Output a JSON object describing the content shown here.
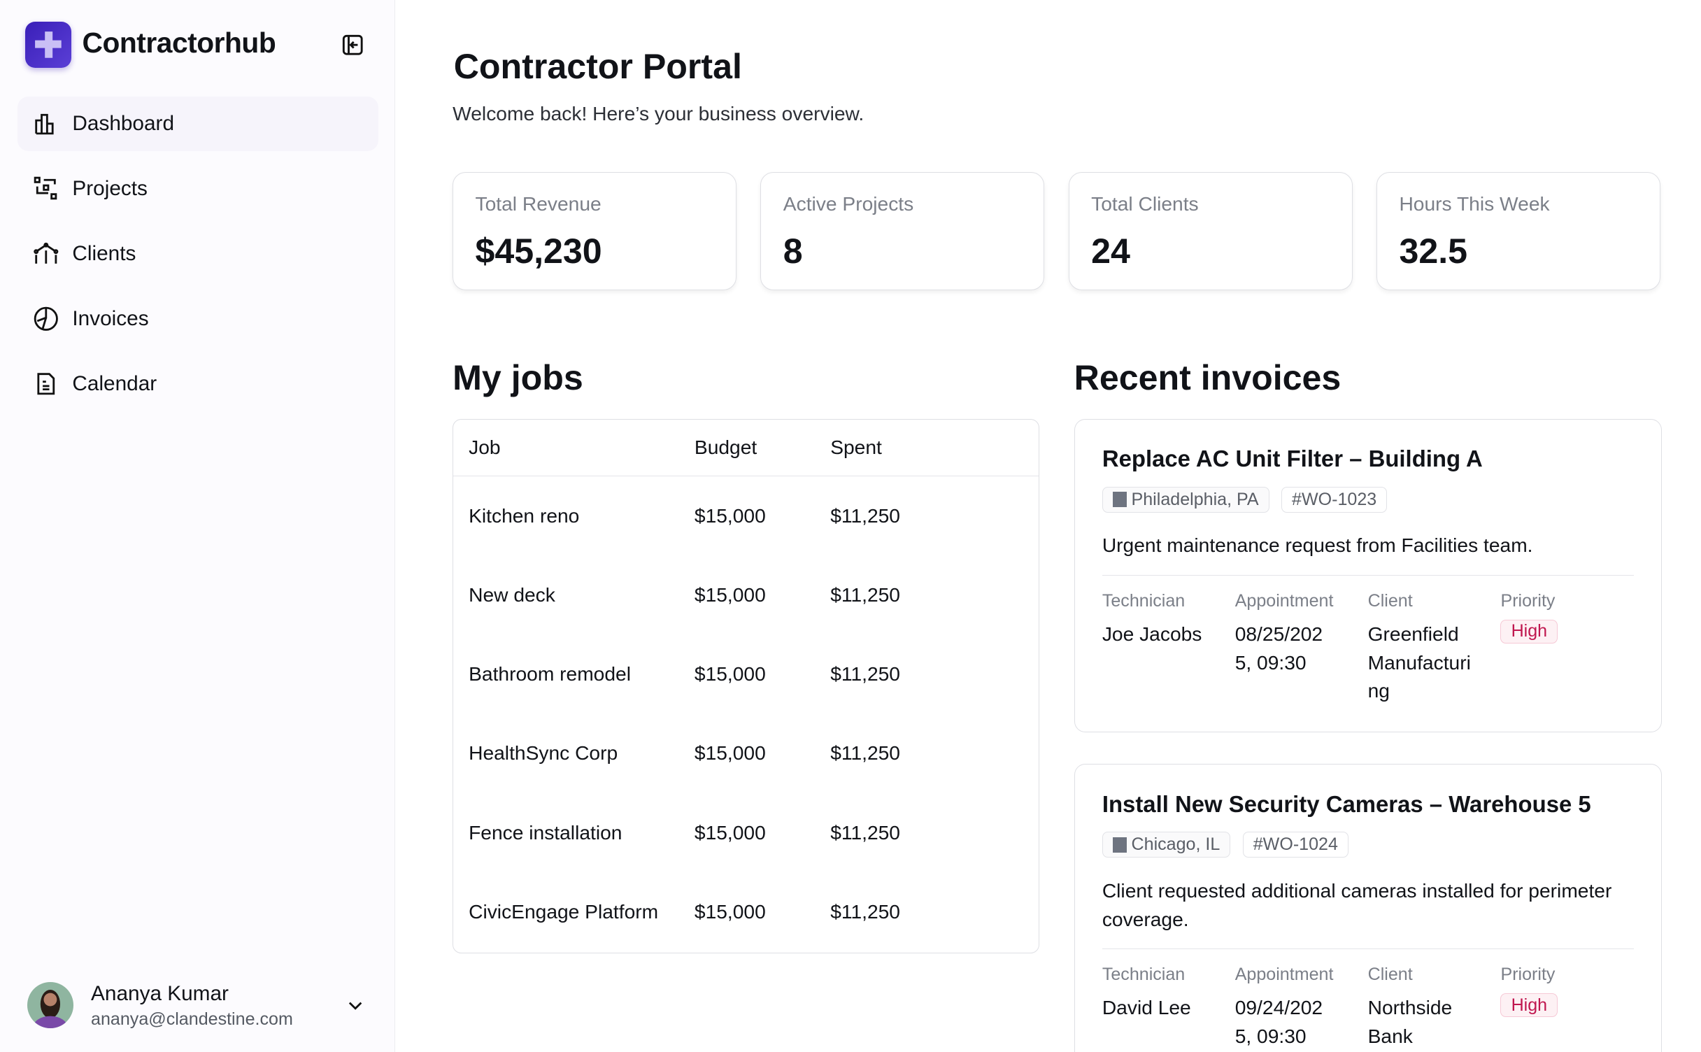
{
  "app": {
    "brand": "Contractorhub"
  },
  "sidebar": {
    "items": [
      {
        "label": "Dashboard",
        "icon": "bar-chart-icon"
      },
      {
        "label": "Projects",
        "icon": "projects-icon"
      },
      {
        "label": "Clients",
        "icon": "line-chart-icon"
      },
      {
        "label": "Invoices",
        "icon": "pie-chart-icon"
      },
      {
        "label": "Calendar",
        "icon": "document-icon"
      }
    ]
  },
  "user": {
    "name": "Ananya Kumar",
    "email": "ananya@clandestine.com"
  },
  "header": {
    "title": "Contractor Portal",
    "subtitle": "Welcome back! Here’s your business overview."
  },
  "stats": [
    {
      "label": "Total Revenue",
      "value": "$45,230"
    },
    {
      "label": "Active Projects",
      "value": "8"
    },
    {
      "label": "Total Clients",
      "value": "24"
    },
    {
      "label": "Hours This Week",
      "value": "32.5"
    }
  ],
  "jobs": {
    "title": "My jobs",
    "columns": [
      "Job",
      "Budget",
      "Spent"
    ],
    "rows": [
      [
        "Kitchen reno",
        "$15,000",
        "$11,250"
      ],
      [
        "New deck",
        "$15,000",
        "$11,250"
      ],
      [
        "Bathroom remodel",
        "$15,000",
        "$11,250"
      ],
      [
        "HealthSync Corp",
        "$15,000",
        "$11,250"
      ],
      [
        "Fence installation",
        "$15,000",
        "$11,250"
      ],
      [
        "CivicEngage Platform",
        "$15,000",
        "$11,250"
      ]
    ]
  },
  "invoices": {
    "title": "Recent invoices",
    "labels": {
      "technician": "Technician",
      "appointment": "Appointment",
      "client": "Client",
      "priority": "Priority"
    },
    "items": [
      {
        "title": "Replace AC Unit Filter – Building A",
        "location": "Philadelphia, PA",
        "wo": "#WO-1023",
        "desc": "Urgent maintenance request from Facilities team.",
        "technician": "Joe Jacobs",
        "appointment": "08/25/2025, 09:30",
        "client": "Greenfield Manufacturing",
        "priority": "High"
      },
      {
        "title": "Install New Security Cameras – Warehouse 5",
        "location": "Chicago, IL",
        "wo": "#WO-1024",
        "desc": "Client requested additional cameras installed for perimeter coverage.",
        "technician": "David Lee",
        "appointment": "09/24/2025, 09:30",
        "client": "Northside Bank",
        "priority": "High"
      }
    ]
  },
  "colors": {
    "brand": "#4527c4",
    "priority_high": "#c0174f"
  }
}
